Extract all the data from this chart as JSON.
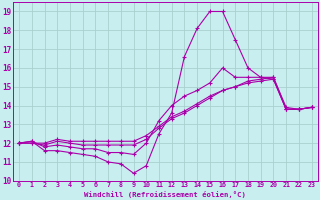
{
  "xlabel": "Windchill (Refroidissement éolien,°C)",
  "xlim": [
    -0.5,
    23.5
  ],
  "ylim": [
    10,
    19.5
  ],
  "yticks": [
    10,
    11,
    12,
    13,
    14,
    15,
    16,
    17,
    18,
    19
  ],
  "xticks": [
    0,
    1,
    2,
    3,
    4,
    5,
    6,
    7,
    8,
    9,
    10,
    11,
    12,
    13,
    14,
    15,
    16,
    17,
    18,
    19,
    20,
    21,
    22,
    23
  ],
  "bg_color": "#c8eef0",
  "grid_color": "#aacfcf",
  "line_color": "#aa00aa",
  "lines": [
    [
      0,
      12.0,
      1,
      12.1,
      2,
      11.6,
      3,
      11.6,
      4,
      11.5,
      5,
      11.4,
      6,
      11.3,
      7,
      11.0,
      8,
      10.9,
      9,
      10.4,
      10,
      10.8,
      11,
      12.5,
      12,
      13.6,
      13,
      16.6,
      14,
      18.1,
      15,
      19.0,
      16,
      19.0,
      17,
      17.5,
      18,
      16.0,
      19,
      15.5,
      20,
      15.5,
      21,
      13.9,
      22,
      13.8,
      23,
      13.9
    ],
    [
      0,
      12.0,
      1,
      12.1,
      2,
      11.8,
      3,
      11.9,
      4,
      11.8,
      5,
      11.7,
      6,
      11.7,
      7,
      11.5,
      8,
      11.5,
      9,
      11.4,
      10,
      12.0,
      11,
      13.2,
      12,
      14.0,
      13,
      14.5,
      14,
      14.8,
      15,
      15.2,
      16,
      16.0,
      17,
      15.5,
      18,
      15.5,
      19,
      15.5,
      20,
      15.4,
      21,
      13.8,
      22,
      13.8,
      23,
      13.9
    ],
    [
      0,
      12.0,
      1,
      12.0,
      2,
      11.9,
      3,
      12.1,
      4,
      12.0,
      5,
      11.9,
      6,
      11.9,
      7,
      11.9,
      8,
      11.9,
      9,
      11.9,
      10,
      12.2,
      11,
      12.8,
      12,
      13.3,
      13,
      13.6,
      14,
      14.0,
      15,
      14.4,
      16,
      14.8,
      17,
      15.0,
      18,
      15.2,
      19,
      15.3,
      20,
      15.4,
      21,
      13.8,
      22,
      13.8,
      23,
      13.9
    ],
    [
      0,
      12.0,
      1,
      12.0,
      2,
      12.0,
      3,
      12.2,
      4,
      12.1,
      5,
      12.1,
      6,
      12.1,
      7,
      12.1,
      8,
      12.1,
      9,
      12.1,
      10,
      12.4,
      11,
      12.9,
      12,
      13.4,
      13,
      13.7,
      14,
      14.1,
      15,
      14.5,
      16,
      14.8,
      17,
      15.0,
      18,
      15.3,
      19,
      15.4,
      20,
      15.5,
      21,
      13.8,
      22,
      13.8,
      23,
      13.9
    ]
  ]
}
